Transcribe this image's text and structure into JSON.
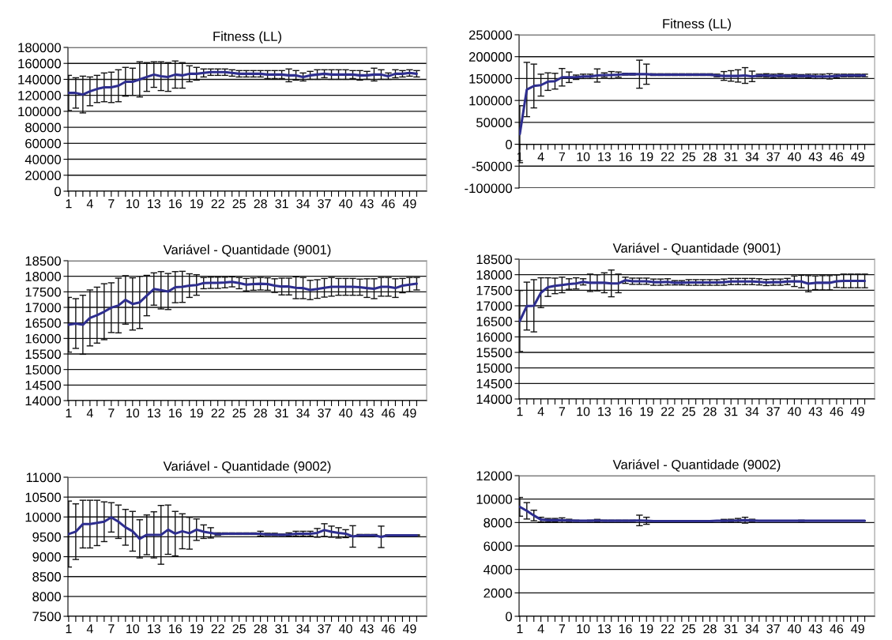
{
  "chart_data": [
    {
      "type": "line",
      "title": "Fitness (LL)",
      "color": "#2e2e8f",
      "grid": "y",
      "marker": "none",
      "categories": [
        "1",
        null,
        null,
        "4",
        null,
        null,
        "7",
        null,
        null,
        "10",
        null,
        null,
        "13",
        null,
        null,
        "16",
        null,
        null,
        "19",
        null,
        null,
        "22",
        null,
        null,
        "25",
        null,
        null,
        "28",
        null,
        null,
        "31",
        null,
        null,
        "34",
        null,
        null,
        "37",
        null,
        null,
        "40",
        null,
        null,
        "43",
        null,
        null,
        "46",
        null,
        null,
        "49",
        null
      ],
      "values": [
        123000,
        123000,
        121000,
        125000,
        128000,
        130000,
        130000,
        132000,
        137000,
        137000,
        140000,
        143000,
        146000,
        144000,
        143000,
        146000,
        145000,
        147000,
        147000,
        148000,
        149000,
        149000,
        149000,
        148000,
        147000,
        147000,
        147000,
        147000,
        146000,
        146000,
        146000,
        145000,
        145000,
        143000,
        145000,
        146000,
        147000,
        146000,
        146000,
        146000,
        146000,
        145000,
        145000,
        146000,
        146000,
        144000,
        147000,
        147000,
        148000,
        147000
      ],
      "errors": [
        22000,
        19000,
        23000,
        18000,
        17000,
        18000,
        19000,
        20000,
        18000,
        17000,
        22000,
        18000,
        16000,
        18000,
        18000,
        17000,
        16000,
        10000,
        8000,
        5000,
        4000,
        4000,
        4000,
        4000,
        4000,
        4000,
        4000,
        4000,
        5000,
        5000,
        5000,
        8000,
        6000,
        5000,
        5000,
        6000,
        5000,
        6000,
        6000,
        6000,
        5000,
        6000,
        5000,
        8000,
        6000,
        4000,
        5000,
        4000,
        4000,
        4000
      ],
      "ylim": [
        0,
        180000
      ],
      "yticks": [
        0,
        20000,
        40000,
        60000,
        80000,
        100000,
        120000,
        140000,
        160000,
        180000
      ]
    },
    {
      "type": "line",
      "title": "Fitness (LL)",
      "color": "#2e2e8f",
      "grid": "y",
      "marker": "none",
      "categories": [
        "1",
        null,
        null,
        "4",
        null,
        null,
        "7",
        null,
        null,
        "10",
        null,
        null,
        "13",
        null,
        null,
        "16",
        null,
        null,
        "19",
        null,
        null,
        "22",
        null,
        null,
        "25",
        null,
        null,
        "28",
        null,
        null,
        "31",
        null,
        null,
        "34",
        null,
        null,
        "37",
        null,
        null,
        "40",
        null,
        null,
        "43",
        null,
        null,
        "46",
        null,
        null,
        "49",
        null
      ],
      "values": [
        23000,
        125000,
        133000,
        135000,
        143000,
        144000,
        153000,
        153000,
        153000,
        155000,
        155000,
        157000,
        158000,
        158000,
        159000,
        160000,
        160000,
        160000,
        160000,
        159000,
        159000,
        159000,
        159000,
        159000,
        159000,
        159000,
        159000,
        159000,
        157000,
        156000,
        156000,
        156000,
        157000,
        155000,
        157000,
        157000,
        156000,
        157000,
        156000,
        156000,
        156000,
        156000,
        155000,
        155000,
        155000,
        156000,
        157000,
        157000,
        157000,
        157000
      ],
      "errors": [
        65000,
        62000,
        50000,
        25000,
        20000,
        18000,
        20000,
        12000,
        5000,
        5000,
        5000,
        15000,
        5000,
        8000,
        6000,
        2000,
        2000,
        32000,
        23000,
        2000,
        2000,
        2000,
        2000,
        2000,
        2000,
        2000,
        2000,
        2000,
        3000,
        10000,
        12000,
        14000,
        18000,
        12000,
        3000,
        4000,
        4000,
        4000,
        3000,
        4000,
        3000,
        4000,
        5000,
        5000,
        6000,
        4000,
        3000,
        3000,
        3000,
        3000
      ],
      "ylim": [
        -100000,
        250000
      ],
      "yticks": [
        -100000,
        -50000,
        0,
        50000,
        100000,
        150000,
        200000,
        250000
      ]
    },
    {
      "type": "line",
      "title": "Variável - Quantidade (9001)",
      "color": "#2e2e8f",
      "grid": "y",
      "marker": "none",
      "categories": [
        "1",
        null,
        null,
        "4",
        null,
        null,
        "7",
        null,
        null,
        "10",
        null,
        null,
        "13",
        null,
        null,
        "16",
        null,
        null,
        "19",
        null,
        null,
        "22",
        null,
        null,
        "25",
        null,
        null,
        "28",
        null,
        null,
        "31",
        null,
        null,
        "34",
        null,
        null,
        "37",
        null,
        null,
        "40",
        null,
        null,
        "43",
        null,
        null,
        "46",
        null,
        null,
        "49",
        null
      ],
      "values": [
        16440,
        16480,
        16440,
        16660,
        16750,
        16860,
        16990,
        17060,
        17240,
        17110,
        17160,
        17380,
        17590,
        17550,
        17510,
        17650,
        17660,
        17700,
        17720,
        17780,
        17790,
        17790,
        17800,
        17820,
        17780,
        17730,
        17750,
        17760,
        17750,
        17700,
        17670,
        17670,
        17630,
        17620,
        17560,
        17590,
        17630,
        17660,
        17660,
        17660,
        17660,
        17650,
        17620,
        17600,
        17660,
        17660,
        17620,
        17700,
        17730,
        17760
      ],
      "errors": [
        880,
        800,
        950,
        900,
        900,
        900,
        800,
        880,
        780,
        840,
        840,
        650,
        520,
        600,
        580,
        500,
        500,
        380,
        330,
        180,
        180,
        180,
        170,
        160,
        180,
        200,
        200,
        200,
        200,
        220,
        270,
        270,
        350,
        340,
        310,
        300,
        300,
        300,
        270,
        270,
        270,
        260,
        300,
        320,
        300,
        300,
        300,
        230,
        230,
        200
      ],
      "ylim": [
        14000,
        18500
      ],
      "yticks": [
        14000,
        14500,
        15000,
        15500,
        16000,
        16500,
        17000,
        17500,
        18000,
        18500
      ]
    },
    {
      "type": "line",
      "title": "Variável - Quantidade (9001)",
      "color": "#2e2e8f",
      "grid": "y",
      "marker": "none",
      "categories": [
        "1",
        null,
        null,
        "4",
        null,
        null,
        "7",
        null,
        null,
        "10",
        null,
        null,
        "13",
        null,
        null,
        "16",
        null,
        null,
        "19",
        null,
        null,
        "22",
        null,
        null,
        "25",
        null,
        null,
        "28",
        null,
        null,
        "31",
        null,
        null,
        "34",
        null,
        null,
        "37",
        null,
        null,
        "40",
        null,
        null,
        "43",
        null,
        null,
        "46",
        null,
        null,
        "49",
        null
      ],
      "values": [
        16510,
        16990,
        17000,
        17420,
        17600,
        17640,
        17670,
        17700,
        17720,
        17770,
        17740,
        17740,
        17740,
        17720,
        17720,
        17820,
        17790,
        17790,
        17790,
        17760,
        17760,
        17770,
        17740,
        17740,
        17750,
        17750,
        17750,
        17750,
        17750,
        17760,
        17780,
        17780,
        17780,
        17780,
        17770,
        17750,
        17760,
        17760,
        17780,
        17790,
        17780,
        17710,
        17740,
        17740,
        17740,
        17790,
        17800,
        17800,
        17800,
        17800
      ],
      "errors": [
        980,
        770,
        840,
        480,
        300,
        250,
        250,
        170,
        180,
        100,
        280,
        260,
        320,
        430,
        300,
        100,
        100,
        100,
        100,
        100,
        100,
        100,
        70,
        70,
        90,
        90,
        90,
        90,
        90,
        100,
        100,
        100,
        100,
        100,
        100,
        100,
        100,
        100,
        100,
        170,
        200,
        260,
        220,
        230,
        230,
        200,
        220,
        220,
        220,
        220
      ],
      "ylim": [
        14000,
        18500
      ],
      "yticks": [
        14000,
        14500,
        15000,
        15500,
        16000,
        16500,
        17000,
        17500,
        18000,
        18500
      ]
    },
    {
      "type": "line",
      "title": "Variável - Quantidade (9002)",
      "color": "#2e2e8f",
      "grid": "y",
      "marker": "none",
      "categories": [
        "1",
        null,
        null,
        "4",
        null,
        null,
        "7",
        null,
        null,
        "10",
        null,
        null,
        "13",
        null,
        null,
        "16",
        null,
        null,
        "19",
        null,
        null,
        "22",
        null,
        null,
        "25",
        null,
        null,
        "28",
        null,
        null,
        "31",
        null,
        null,
        "34",
        null,
        null,
        "37",
        null,
        null,
        "40",
        null,
        null,
        "43",
        null,
        null,
        "46",
        null,
        null,
        "49",
        null
      ],
      "values": [
        9570,
        9630,
        9820,
        9820,
        9850,
        9880,
        9990,
        9880,
        9740,
        9640,
        9450,
        9550,
        9550,
        9550,
        9680,
        9580,
        9640,
        9590,
        9680,
        9630,
        9600,
        9570,
        9580,
        9580,
        9580,
        9580,
        9580,
        9580,
        9560,
        9560,
        9550,
        9560,
        9580,
        9580,
        9580,
        9600,
        9670,
        9630,
        9600,
        9580,
        9510,
        9540,
        9540,
        9540,
        9500,
        9540,
        9540,
        9540,
        9540,
        9540
      ],
      "errors": [
        830,
        700,
        600,
        600,
        570,
        500,
        370,
        420,
        450,
        500,
        480,
        500,
        580,
        740,
        620,
        560,
        440,
        400,
        270,
        170,
        130,
        30,
        20,
        20,
        20,
        20,
        20,
        60,
        30,
        30,
        20,
        40,
        60,
        60,
        60,
        110,
        160,
        140,
        130,
        100,
        270,
        20,
        20,
        20,
        270,
        10,
        10,
        10,
        10,
        10
      ],
      "ylim": [
        7500,
        11000
      ],
      "yticks": [
        7500,
        8000,
        8500,
        9000,
        9500,
        10000,
        10500,
        11000
      ]
    },
    {
      "type": "line",
      "title": "Variável - Quantidade (9002)",
      "color": "#2e2e8f",
      "grid": "y",
      "marker": "none",
      "categories": [
        "1",
        null,
        null,
        "4",
        null,
        null,
        "7",
        null,
        null,
        "10",
        null,
        null,
        "13",
        null,
        null,
        "16",
        null,
        null,
        "19",
        null,
        null,
        "22",
        null,
        null,
        "25",
        null,
        null,
        "28",
        null,
        null,
        "31",
        null,
        null,
        "34",
        null,
        null,
        "37",
        null,
        null,
        "40",
        null,
        null,
        "43",
        null,
        null,
        "46",
        null,
        null,
        "49",
        null
      ],
      "values": [
        9340,
        9000,
        8600,
        8250,
        8200,
        8200,
        8200,
        8180,
        8150,
        8150,
        8150,
        8170,
        8150,
        8150,
        8150,
        8150,
        8150,
        8180,
        8150,
        8130,
        8130,
        8130,
        8130,
        8130,
        8130,
        8130,
        8130,
        8130,
        8150,
        8150,
        8160,
        8180,
        8200,
        8180,
        8150,
        8150,
        8150,
        8150,
        8150,
        8150,
        8150,
        8150,
        8150,
        8150,
        8150,
        8150,
        8150,
        8150,
        8150,
        8150
      ],
      "errors": [
        800,
        700,
        450,
        200,
        150,
        150,
        200,
        100,
        50,
        30,
        50,
        100,
        50,
        50,
        50,
        50,
        50,
        450,
        300,
        50,
        50,
        50,
        50,
        50,
        50,
        50,
        50,
        50,
        null,
        120,
        120,
        170,
        250,
        100,
        null,
        null,
        null,
        null,
        null,
        null,
        50,
        null,
        null,
        null,
        null,
        null,
        null,
        null,
        null,
        null
      ],
      "ylim": [
        0,
        12000
      ],
      "yticks": [
        0,
        2000,
        4000,
        6000,
        8000,
        10000,
        12000
      ]
    }
  ]
}
